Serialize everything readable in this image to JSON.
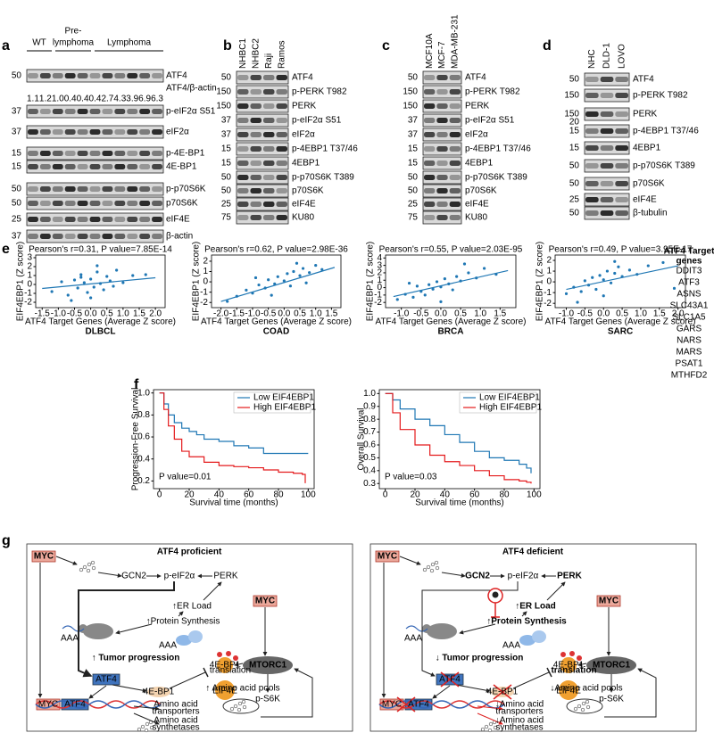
{
  "figure": {
    "a": {
      "label": "a",
      "groups": [
        [
          "WT"
        ],
        [
          "Pre-",
          "lymphoma"
        ],
        [
          "Lymphoma"
        ]
      ],
      "rows": [
        {
          "mw": 50,
          "name": "ATF4"
        },
        {
          "mw": 37,
          "name": "p-eIF2α S51"
        },
        {
          "mw": 37,
          "name": "eIF2α"
        },
        {
          "mw": 15,
          "name": "p-4E-BP1"
        },
        {
          "mw": 15,
          "name": "4E-BP1"
        },
        {
          "mw": 50,
          "name": "p-p70S6K"
        },
        {
          "mw": 50,
          "name": "p70S6K"
        },
        {
          "mw": 25,
          "name": "eIF4E"
        },
        {
          "mw": 37,
          "name": "β-actin"
        }
      ],
      "ratio_name": "ATF4/β-actin",
      "ratios": [
        "1.1",
        "1.2",
        "1.0",
        "0.4",
        "0.4",
        "0.4",
        "2.7",
        "4.3",
        "3.9",
        "6.9",
        "6.3"
      ]
    },
    "b": {
      "label": "b",
      "lanes": [
        "NHBC1",
        "NHBC2",
        "Raji",
        "Ramos"
      ],
      "rows": [
        {
          "mw": 50,
          "name": "ATF4"
        },
        {
          "mw": 150,
          "name": "p-PERK T982"
        },
        {
          "mw": 150,
          "name": "PERK"
        },
        {
          "mw": 37,
          "name": "p-eIF2α S51"
        },
        {
          "mw": 37,
          "name": "eIF2α"
        },
        {
          "mw": 15,
          "name": "p-4EBP1 T37/46"
        },
        {
          "mw": 15,
          "name": "4EBP1"
        },
        {
          "mw": 50,
          "name": "p-p70S6K T389"
        },
        {
          "mw": 50,
          "name": "p70S6K"
        },
        {
          "mw": 25,
          "name": "eIF4E"
        },
        {
          "mw": 75,
          "name": "KU80"
        }
      ]
    },
    "c": {
      "label": "c",
      "lanes": [
        "MCF10A",
        "MCF-7",
        "MDA-MB-231"
      ],
      "rows": [
        {
          "mw": 50,
          "name": "ATF4"
        },
        {
          "mw": 150,
          "name": "p-PERK T982"
        },
        {
          "mw": 150,
          "name": "PERK"
        },
        {
          "mw": 37,
          "name": "p-eIF2α S51"
        },
        {
          "mw": 37,
          "name": "eIF2α"
        },
        {
          "mw": 15,
          "name": "p-4EBP1 T37/46"
        },
        {
          "mw": 15,
          "name": "4EBP1"
        },
        {
          "mw": 50,
          "name": "p-p70S6K T389"
        },
        {
          "mw": 50,
          "name": "p70S6K"
        },
        {
          "mw": 25,
          "name": "eIF4E"
        },
        {
          "mw": 75,
          "name": "KU80"
        }
      ]
    },
    "d": {
      "label": "d",
      "lanes": [
        "NHC",
        "DLD-1",
        "LOVO"
      ],
      "rows": [
        {
          "mw": 50,
          "name": "ATF4"
        },
        {
          "mw": 150,
          "name": "p-PERK T982"
        },
        {
          "mw": 150,
          "name": "PERK"
        },
        {
          "mw": 15,
          "mw_upper": 20,
          "name": "p-4EBP1 T37/46"
        },
        {
          "mw": 15,
          "name": "4EBP1"
        },
        {
          "mw": 50,
          "name": "p-p70S6K T389"
        },
        {
          "mw": 50,
          "name": "p70S6K"
        },
        {
          "mw": 25,
          "name": "eIF4E"
        },
        {
          "mw": 50,
          "name": "β-tubulin"
        }
      ]
    },
    "e": {
      "label": "e",
      "plots": [
        {
          "title": "DLBCL",
          "stat": "Pearson's r=0.31, P value=7.85E-14",
          "xlabel": "ATF4 Target Genes (Average Z score)",
          "ylabel": "EIF4EBP1 (Z score)",
          "color": "#1f77b4",
          "xlim": [
            -1.7,
            2.3
          ],
          "ylim": [
            -2.6,
            3.3
          ],
          "xticks": [
            -1.5,
            {
              "value": -1,
              "label": "-1.0"
            },
            -0.5,
            {
              "value": 0,
              "label": "0.0"
            },
            0.5,
            {
              "value": 1,
              "label": "1.0"
            },
            1.5,
            {
              "value": 2,
              "label": "2.0"
            }
          ],
          "yticks": [
            -2,
            -1,
            0,
            1,
            2,
            3
          ],
          "x": [
            -1.2,
            -0.9,
            -0.7,
            -0.5,
            -0.4,
            -0.3,
            -0.2,
            -0.1,
            0,
            0.1,
            0.2,
            0.3,
            0.4,
            0.5,
            0.6,
            0.8,
            1.0,
            1.3,
            -0.6,
            0.2,
            0.0,
            -0.3,
            0.7,
            1.7
          ],
          "y": [
            -0.8,
            0.3,
            -1.2,
            0.5,
            -0.4,
            1.1,
            0.2,
            -0.9,
            0.6,
            -0.3,
            1.4,
            0.1,
            -0.6,
            0.9,
            0.4,
            1.6,
            0.2,
            1.0,
            -1.8,
            2.1,
            -1.5,
            0.8,
            -0.2,
            1.1
          ],
          "fit": {
            "x": [
              -1.5,
              2.0
            ],
            "y": [
              -0.45,
              0.75
            ]
          }
        },
        {
          "title": "COAD",
          "stat": "Pearson's r=0.62, P value=2.98E-36",
          "xlabel": "ATF4 Target Genes (Average Z score)",
          "ylabel": "EIF4EBP1 (Z score)",
          "color": "#1f77b4",
          "xlim": [
            -2.3,
            1.8
          ],
          "ylim": [
            -2.5,
            2.6
          ],
          "xticks": [
            {
              "value": -2,
              "label": "-2.0"
            },
            -1.5,
            {
              "value": -1,
              "label": "-1.0"
            },
            -0.5,
            {
              "value": 0,
              "label": "0.0"
            },
            0.5,
            {
              "value": 1,
              "label": "1.0"
            },
            1.5
          ],
          "yticks": [
            -2,
            -1,
            0,
            1,
            2
          ],
          "x": [
            -1.8,
            -1.5,
            -1.2,
            -1.0,
            -0.8,
            -0.6,
            -0.5,
            -0.3,
            -0.2,
            0,
            0.1,
            0.2,
            0.3,
            0.5,
            0.6,
            0.8,
            1.0,
            1.2,
            -0.4,
            0.4,
            -0.9,
            0.7
          ],
          "y": [
            -1.9,
            -1.4,
            -0.8,
            -1.1,
            -0.3,
            -0.6,
            0.2,
            -0.2,
            0.5,
            0.1,
            0.8,
            -0.4,
            1.0,
            0.6,
            1.3,
            0.9,
            1.6,
            1.2,
            -1.3,
            1.8,
            0.4,
            -0.1
          ],
          "fit": {
            "x": [
              -2.0,
              1.6
            ],
            "y": [
              -1.9,
              1.4
            ]
          }
        },
        {
          "title": "BRCA",
          "stat": "Pearson's r=0.55, P value=2.03E-95",
          "xlabel": "ATF4 Target Genes (Average Z score)",
          "ylabel": "EIF4EBP1 (Z score)",
          "color": "#1f77b4",
          "xlim": [
            -1.4,
            1.9
          ],
          "ylim": [
            -2.7,
            4.4
          ],
          "xticks": [
            {
              "value": -1,
              "label": "-1.0"
            },
            -0.5,
            {
              "value": 0,
              "label": "0.0"
            },
            0.5,
            {
              "value": 1,
              "label": "1.0"
            },
            1.5
          ],
          "yticks": [
            -2,
            -1,
            0,
            1,
            2,
            3,
            4
          ],
          "x": [
            -1.1,
            -0.9,
            -0.7,
            -0.6,
            -0.5,
            -0.4,
            -0.3,
            -0.2,
            -0.1,
            0,
            0.1,
            0.2,
            0.3,
            0.4,
            0.5,
            0.7,
            0.9,
            1.1,
            1.4,
            -0.8,
            0.0,
            0.6
          ],
          "y": [
            -1.6,
            -0.9,
            -1.3,
            0.2,
            -0.5,
            -1.0,
            0.4,
            -0.2,
            0.8,
            0.1,
            1.2,
            0.5,
            -0.3,
            1.5,
            0.9,
            2.0,
            1.3,
            2.6,
            1.8,
            0.6,
            -1.9,
            3.2
          ],
          "fit": {
            "x": [
              -1.2,
              1.7
            ],
            "y": [
              -1.2,
              2.3
            ]
          }
        },
        {
          "title": "SARC",
          "stat": "Pearson's r=0.49, P value=3.95E-17",
          "xlabel": "ATF4 Target Genes (Average Z score)",
          "ylabel": "EIF4EBP1 (Z score)",
          "color": "#1f77b4",
          "xlim": [
            -1.3,
            2.2
          ],
          "ylim": [
            -2.4,
            2.5
          ],
          "xticks": [
            {
              "value": -1,
              "label": "-1.0"
            },
            -0.5,
            {
              "value": 0,
              "label": "0.0"
            },
            0.5,
            {
              "value": 1,
              "label": "1.0"
            },
            1.5,
            {
              "value": 2,
              "label": "2.0"
            }
          ],
          "yticks": [
            -2,
            -1,
            0,
            1,
            2
          ],
          "x": [
            -1.0,
            -0.8,
            -0.6,
            -0.5,
            -0.4,
            -0.3,
            -0.2,
            -0.1,
            0,
            0.1,
            0.2,
            0.3,
            0.4,
            0.5,
            0.7,
            0.9,
            1.2,
            1.6,
            -0.7,
            0.3,
            0.0,
            1.9
          ],
          "y": [
            -1.1,
            -0.5,
            -0.9,
            0.1,
            -0.3,
            0.4,
            -0.7,
            0.6,
            0.2,
            1.0,
            -0.1,
            0.8,
            1.4,
            0.5,
            1.1,
            0.7,
            1.5,
            1.8,
            -1.9,
            1.9,
            -1.3,
            -0.6
          ],
          "fit": {
            "x": [
              -1.0,
              2.0
            ],
            "y": [
              -0.7,
              1.5
            ]
          }
        }
      ],
      "genes_title": [
        "ATF4 Target",
        "genes"
      ],
      "genes": [
        "DDIT3",
        "ATF3",
        "ASNS",
        "SLC43A1",
        "SLC1A5",
        "GARS",
        "NARS",
        "MARS",
        "PSAT1",
        "MTHFD2"
      ]
    },
    "f": {
      "label": "f",
      "plots": [
        {
          "ylabel": "Progression-Free Survival",
          "xlabel": "Survival time (months)",
          "pvalue": "P value=0.01",
          "xlim": [
            -4,
            104
          ],
          "ylim": [
            0.13,
            1.03
          ],
          "xticks": [
            0,
            20,
            40,
            60,
            80,
            100
          ],
          "yticks": [
            0.2,
            0.4,
            0.6,
            0.8,
            {
              "value": 1,
              "label": "1.0"
            }
          ],
          "series": [
            {
              "name": "Low EIF4EBP1",
              "color": "#1f77b4",
              "x": [
                0,
                3,
                6,
                10,
                15,
                20,
                25,
                30,
                40,
                50,
                60,
                70,
                80,
                90,
                100
              ],
              "y": [
                1.0,
                0.9,
                0.8,
                0.73,
                0.68,
                0.65,
                0.62,
                0.58,
                0.56,
                0.52,
                0.5,
                0.45,
                0.45,
                0.45,
                0.45
              ]
            },
            {
              "name": "High EIF4EBP1",
              "color": "#e41a1c",
              "x": [
                0,
                3,
                6,
                10,
                15,
                20,
                30,
                40,
                50,
                60,
                70,
                80,
                90,
                96,
                98
              ],
              "y": [
                1.0,
                0.85,
                0.7,
                0.58,
                0.47,
                0.42,
                0.37,
                0.34,
                0.33,
                0.32,
                0.3,
                0.28,
                0.27,
                0.26,
                0.18
              ]
            }
          ]
        },
        {
          "ylabel": "Overall Survival",
          "xlabel": "Survival time (months)",
          "pvalue": "P value=0.03",
          "xlim": [
            -4,
            104
          ],
          "ylim": [
            0.26,
            1.03
          ],
          "xticks": [
            0,
            20,
            40,
            60,
            80,
            100
          ],
          "yticks": [
            0.3,
            0.4,
            0.5,
            0.6,
            0.7,
            0.8,
            0.9,
            {
              "value": 1,
              "label": "1.0"
            }
          ],
          "series": [
            {
              "name": "Low EIF4EBP1",
              "color": "#1f77b4",
              "x": [
                0,
                5,
                10,
                20,
                30,
                40,
                50,
                60,
                70,
                80,
                90,
                95,
                98
              ],
              "y": [
                1.0,
                0.95,
                0.88,
                0.8,
                0.75,
                0.68,
                0.62,
                0.55,
                0.5,
                0.48,
                0.45,
                0.42,
                0.38
              ]
            },
            {
              "name": "High EIF4EBP1",
              "color": "#e41a1c",
              "x": [
                0,
                5,
                10,
                20,
                30,
                40,
                50,
                60,
                70,
                80,
                90,
                95,
                98
              ],
              "y": [
                1.0,
                0.85,
                0.72,
                0.6,
                0.52,
                0.47,
                0.44,
                0.4,
                0.36,
                0.33,
                0.32,
                0.31,
                0.3
              ]
            }
          ]
        }
      ]
    },
    "g": {
      "label": "g",
      "left": {
        "title": "ATF4 proficient",
        "myc_top": "MYC",
        "gcn2": "GCN2",
        "peif": "p-eIF2α",
        "perk": "PERK",
        "er": "↑ER Load",
        "ps": "↑Protein Synthesis",
        "myc_right": "MYC",
        "tumor": "↑ Tumor progression",
        "aaa1": "AAA",
        "aaa2": "AAA",
        "atf4": "ATF4",
        "mtorc1": "MTORC1",
        "bp1": "4E-BP1",
        "eif4e": "EIF4E",
        "ps6k": "p-S6K",
        "translation": "translation",
        "bp1b": "4E-BP1",
        "aap": "↑ Amino acid pools",
        "dna_myc": "MYC",
        "dna_atf4": "ATF4",
        "trans1": "Amino acid",
        "trans2": "transporters",
        "synth1": "Amino acid",
        "synth2": "synthetases"
      },
      "right": {
        "title": "ATF4 deficient",
        "myc_top": "MYC",
        "gcn2": "GCN2",
        "peif": "p-eIF2α",
        "perk": "PERK",
        "er": "↑ER Load",
        "ps": "↑Protein Synthesis",
        "myc_right": "MYC",
        "tumor": "↓ Tumor progression",
        "aaa1": "AAA",
        "aaa2": "AAA",
        "atf4": "ATF4",
        "mtorc1": "MTORC1",
        "bp1": "4E-BP1",
        "eif4e": "EIF4E",
        "ps6k": "p-S6K",
        "translation": "translation",
        "bp1b": "4E-BP1",
        "aap": "↓Amino acid pools",
        "dna_myc": "MYC",
        "dna_atf4": "ATF4",
        "trans1": "↓Amino acid",
        "trans2": "transporters",
        "synth1": "↓Amino acid",
        "synth2": "synthetases"
      }
    }
  }
}
